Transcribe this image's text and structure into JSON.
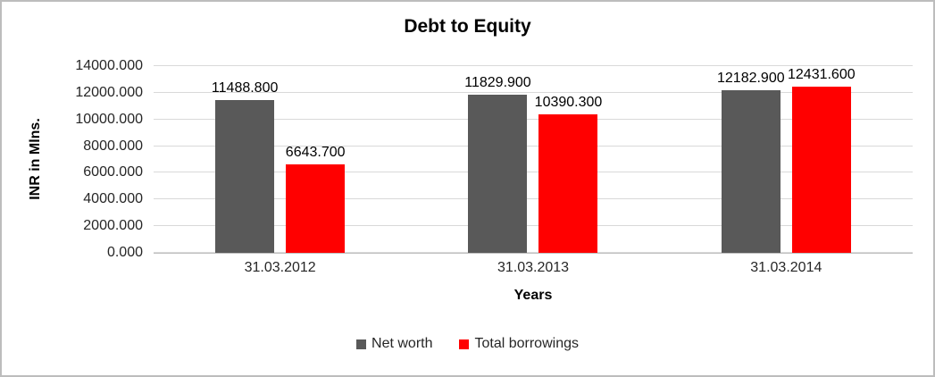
{
  "chart_data": {
    "type": "bar",
    "title": "Debt to Equity",
    "xlabel": "Years",
    "ylabel": "INR in Mlns.",
    "categories": [
      "31.03.2012",
      "31.03.2013",
      "31.03.2014"
    ],
    "series": [
      {
        "name": "Net worth",
        "color": "#595959",
        "values": [
          11488.8,
          11829.9,
          12182.9
        ]
      },
      {
        "name": "Total borrowings",
        "color": "#ff0000",
        "values": [
          6643.7,
          10390.3,
          12431.6
        ]
      }
    ],
    "data_labels": true,
    "label_decimals": 3,
    "ylim": [
      0,
      14000
    ],
    "yticks": [
      0,
      2000,
      4000,
      6000,
      8000,
      10000,
      12000,
      14000
    ],
    "ytick_decimals": 3,
    "grid": true,
    "legend_position": "bottom"
  }
}
